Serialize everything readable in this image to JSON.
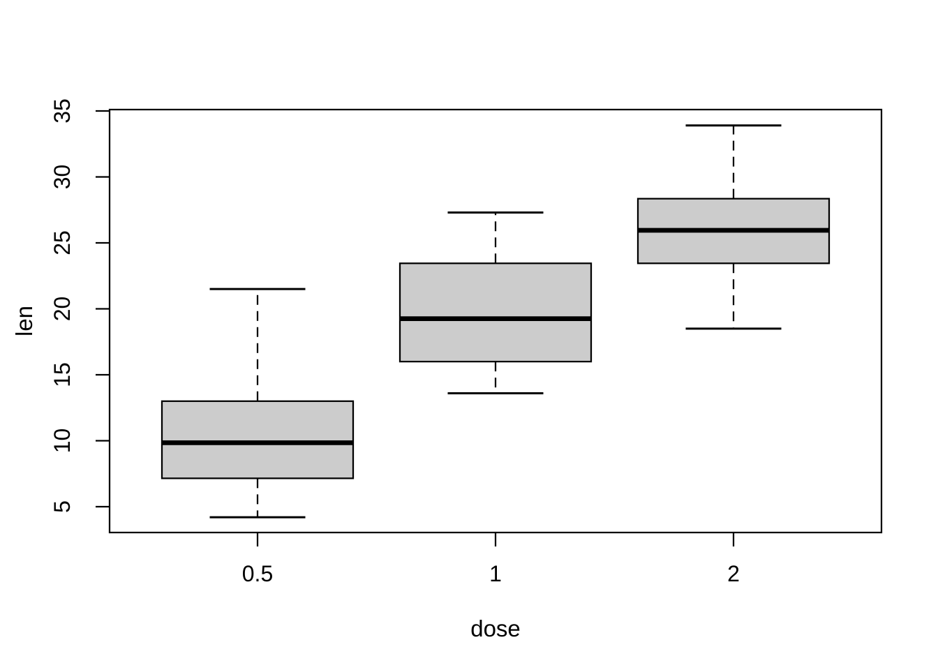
{
  "figure": {
    "background": "#ffffff",
    "line_color": "#000000",
    "box_fill": "#cccccc"
  },
  "chart_data": {
    "type": "boxplot",
    "title": "",
    "xlabel": "dose",
    "ylabel": "len",
    "categories": [
      "0.5",
      "1",
      "2"
    ],
    "y_ticks": [
      5,
      10,
      15,
      20,
      25,
      30,
      35
    ],
    "ylim": [
      3.0,
      35.1
    ],
    "grid": false,
    "legend": "none",
    "series": [
      {
        "category": "0.5",
        "whisker_low": 4.2,
        "q1": 7.15,
        "median": 9.85,
        "q3": 13.0,
        "whisker_high": 21.5,
        "outliers": []
      },
      {
        "category": "1",
        "whisker_low": 13.6,
        "q1": 16.0,
        "median": 19.25,
        "q3": 23.45,
        "whisker_high": 27.3,
        "outliers": []
      },
      {
        "category": "2",
        "whisker_low": 18.5,
        "q1": 23.45,
        "median": 25.95,
        "q3": 28.35,
        "whisker_high": 33.9,
        "outliers": []
      }
    ]
  }
}
